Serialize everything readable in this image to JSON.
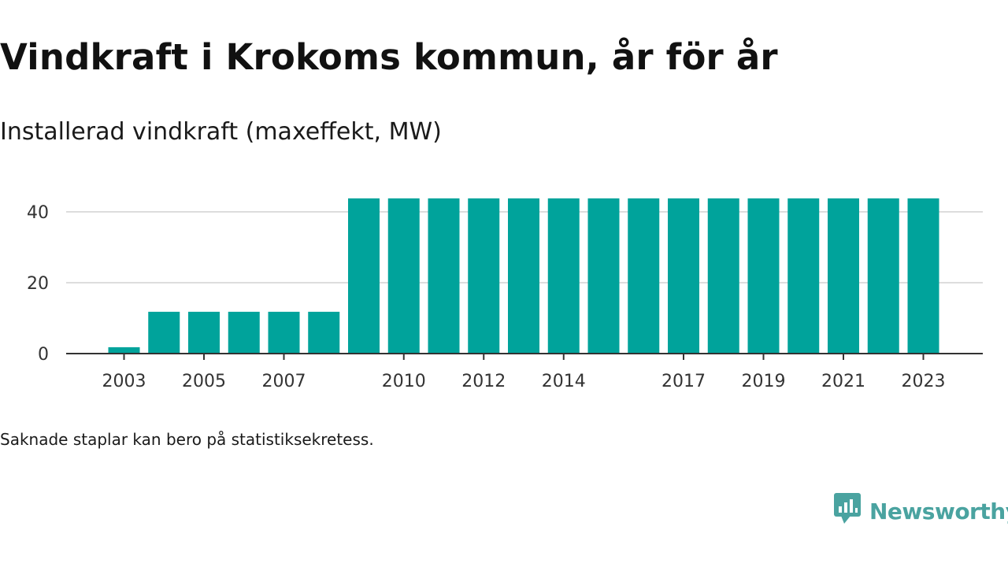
{
  "colors": {
    "bar": "#00a39b",
    "grid": "#dddddd",
    "axis": "#333333",
    "brand": "#4aa3a0"
  },
  "footnote": "Saknade staplar kan bero på statistiksekretess.",
  "brand": {
    "name": "Newsworthy",
    "icon": "newsworthy-chart-bubble-icon"
  },
  "chart_data": {
    "type": "bar",
    "title": "Vindkraft i Krokoms kommun, år för år",
    "subtitle": "Installerad vindkraft (maxeffekt, MW)",
    "xlabel": "",
    "ylabel": "",
    "ylim": [
      0,
      48
    ],
    "yticks": [
      0,
      20,
      40
    ],
    "grid": true,
    "categories": [
      "2003",
      "2004",
      "2005",
      "2006",
      "2007",
      "2008",
      "2009",
      "2010",
      "2011",
      "2012",
      "2013",
      "2014",
      "2015",
      "2016",
      "2017",
      "2018",
      "2019",
      "2020",
      "2021",
      "2022",
      "2023"
    ],
    "xtick_labels": [
      "2003",
      "2005",
      "2007",
      "2010",
      "2012",
      "2014",
      "2017",
      "2019",
      "2021",
      "2023"
    ],
    "values": [
      1.8,
      11.8,
      11.8,
      11.8,
      11.8,
      11.8,
      43.8,
      43.8,
      43.8,
      43.8,
      43.8,
      43.8,
      43.8,
      43.8,
      43.8,
      43.8,
      43.8,
      43.8,
      43.8,
      43.8,
      43.8
    ]
  }
}
